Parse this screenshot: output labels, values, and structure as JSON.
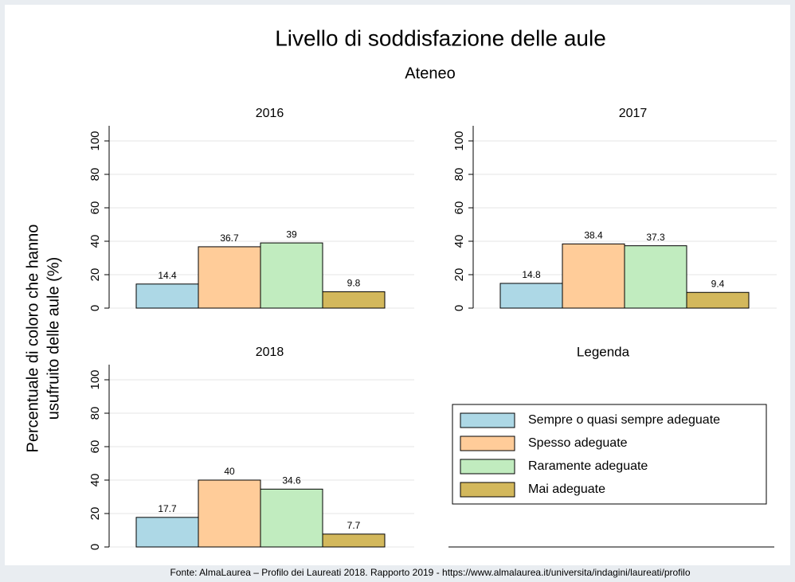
{
  "title": "Livello di soddisfazione delle aule",
  "subtitle": "Ateneo",
  "y_label": [
    "Percentuale di coloro che hanno",
    "usufruito delle aule (%)"
  ],
  "legend": {
    "title": "Legenda",
    "categories": [
      "Sempre o quasi sempre adeguate",
      "Spesso adeguate",
      "Raramente adeguate",
      "Mai adeguate"
    ],
    "colors": [
      "#add8e6",
      "#ffcc99",
      "#c1ecbf",
      "#d3b85c"
    ]
  },
  "source": "Fonte: AlmaLaurea – Profilo dei Laureati 2018. Rapporto 2019 - https://www.almalaurea.it/universita/indagini/laureati/profilo",
  "chart_data": [
    {
      "type": "bar",
      "title": "2016",
      "values": [
        14.4,
        36.7,
        39,
        9.8
      ],
      "ylim": [
        0,
        100
      ],
      "yticks": [
        0,
        20,
        40,
        60,
        80,
        100
      ],
      "grid": true
    },
    {
      "type": "bar",
      "title": "2017",
      "values": [
        14.8,
        38.4,
        37.3,
        9.4
      ],
      "ylim": [
        0,
        100
      ],
      "yticks": [
        0,
        20,
        40,
        60,
        80,
        100
      ],
      "grid": true
    },
    {
      "type": "bar",
      "title": "2018",
      "values": [
        17.7,
        40,
        34.6,
        7.7
      ],
      "ylim": [
        0,
        100
      ],
      "yticks": [
        0,
        20,
        40,
        60,
        80,
        100
      ],
      "grid": true
    }
  ]
}
